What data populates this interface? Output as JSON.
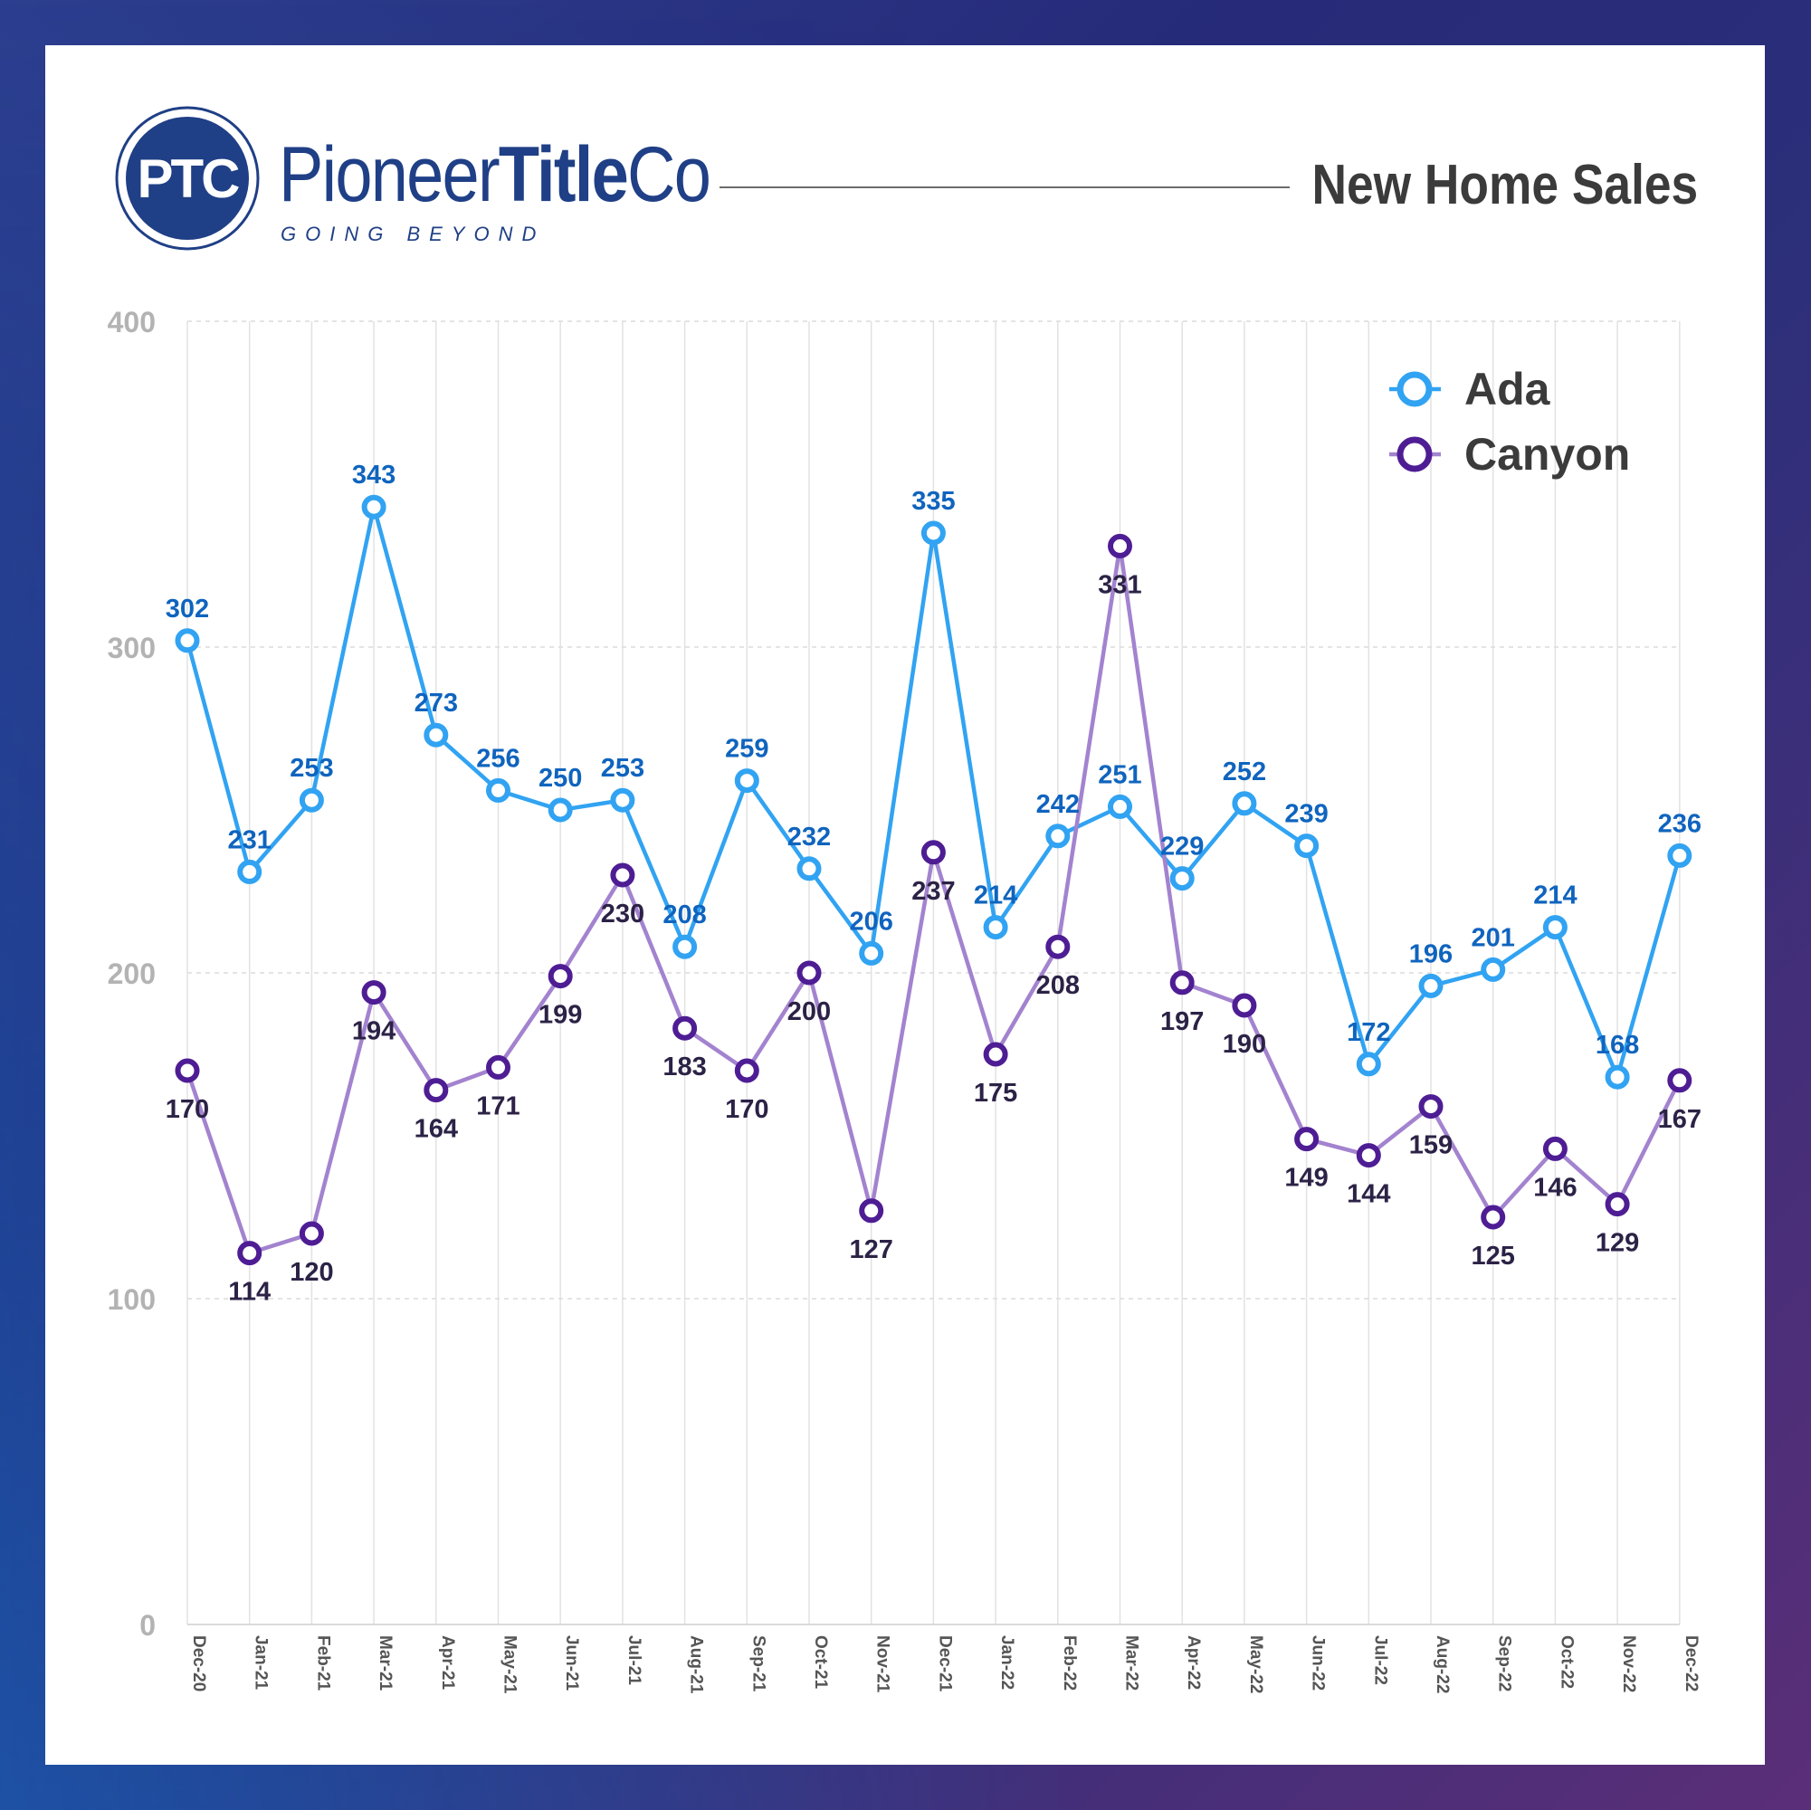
{
  "header": {
    "logo_text": "PTC",
    "brand_light_1": "Pioneer",
    "brand_bold": "Title",
    "brand_light_2": "Co",
    "tagline": "GOING BEYOND",
    "title": "New Home Sales"
  },
  "colors": {
    "ada": "#31a3f2",
    "ada_label": "#0f64be",
    "canyon_marker": "#4e1d94",
    "canyon_line": "#a383cf",
    "canyon_label": "#2c2246",
    "brand": "#1f3f86",
    "axis_text": "#b3b3b3"
  },
  "chart_data": {
    "type": "line",
    "title": "New Home Sales",
    "xlabel": "",
    "ylabel": "",
    "ylim": [
      0,
      400
    ],
    "yticks": [
      0,
      100,
      200,
      300,
      400
    ],
    "grid": true,
    "legend_position": "top-right",
    "categories": [
      "Dec-20",
      "Jan-21",
      "Feb-21",
      "Mar-21",
      "Apr-21",
      "May-21",
      "Jun-21",
      "Jul-21",
      "Aug-21",
      "Sep-21",
      "Oct-21",
      "Nov-21",
      "Dec-21",
      "Jan-22",
      "Feb-22",
      "Mar-22",
      "Apr-22",
      "May-22",
      "Jun-22",
      "Jul-22",
      "Aug-22",
      "Sep-22",
      "Oct-22",
      "Nov-22",
      "Dec-22"
    ],
    "series": [
      {
        "name": "Ada",
        "values": [
          302,
          231,
          253,
          343,
          273,
          256,
          250,
          253,
          208,
          259,
          232,
          206,
          335,
          214,
          242,
          251,
          229,
          252,
          239,
          172,
          196,
          201,
          214,
          168,
          236
        ]
      },
      {
        "name": "Canyon",
        "values": [
          170,
          114,
          120,
          194,
          164,
          171,
          199,
          230,
          183,
          170,
          200,
          127,
          237,
          175,
          208,
          331,
          197,
          190,
          149,
          144,
          159,
          125,
          146,
          129,
          167
        ]
      }
    ]
  }
}
